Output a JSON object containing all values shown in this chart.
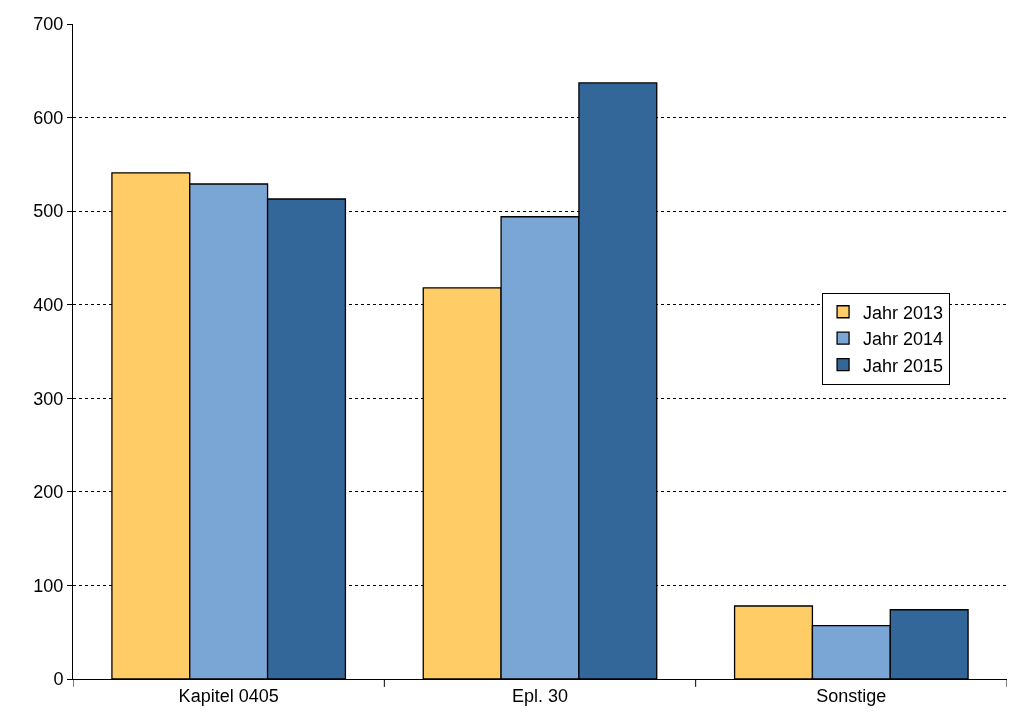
{
  "chart_data": {
    "type": "bar",
    "categories": [
      "Kapitel 0405",
      "Epl. 30",
      "Sonstige"
    ],
    "series": [
      {
        "name": "Jahr 2013",
        "color": "#ffcc66",
        "values": [
          541,
          418,
          78
        ]
      },
      {
        "name": "Jahr 2014",
        "color": "#7aa6d6",
        "values": [
          529,
          494,
          57
        ]
      },
      {
        "name": "Jahr 2015",
        "color": "#336699",
        "values": [
          513,
          637,
          74
        ]
      }
    ],
    "ylim": [
      0,
      700
    ],
    "yticks": [
      0,
      100,
      200,
      300,
      400,
      500,
      600,
      700
    ],
    "grid": "y",
    "legend": "right"
  }
}
